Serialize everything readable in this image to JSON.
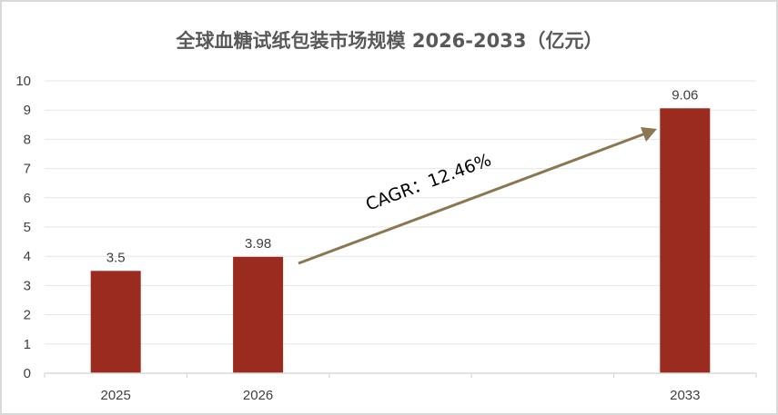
{
  "chart_data": {
    "type": "bar",
    "title": "全球血糖试纸包装市场规模 2026-2033（亿元）",
    "categories": [
      "2025",
      "2026",
      "",
      "",
      "2033"
    ],
    "values": [
      3.5,
      3.98,
      null,
      null,
      9.06
    ],
    "data_labels": [
      "3.5",
      "3.98",
      "",
      "",
      "9.06"
    ],
    "ylim": [
      0,
      10
    ],
    "yticks": [
      "0",
      "1",
      "2",
      "3",
      "4",
      "5",
      "6",
      "7",
      "8",
      "9",
      "10"
    ],
    "xlabel": "",
    "ylabel": "",
    "grid": true,
    "annotation": "CAGR：12.46%",
    "colors": {
      "bar": "#9C2B1F",
      "arrow": "#8B7752",
      "grid": "#e6e6e6"
    }
  }
}
